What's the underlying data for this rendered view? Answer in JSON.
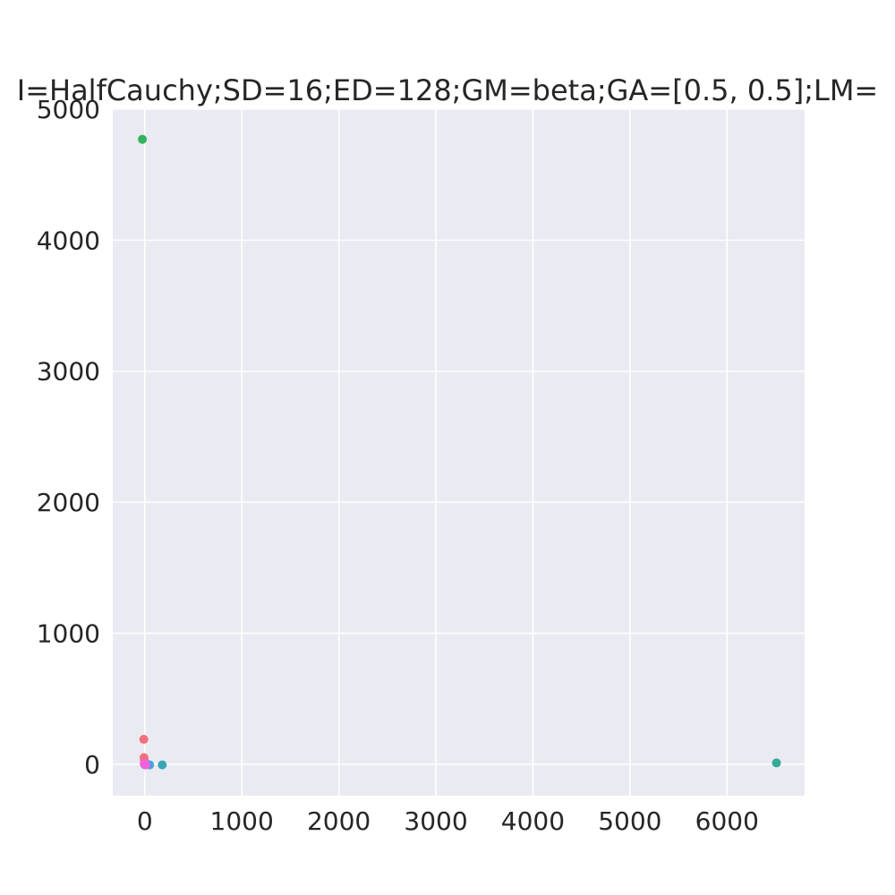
{
  "chart_data": {
    "type": "scatter",
    "title": "I=HalfCauchy;SD=16;ED=128;GM=beta;GA=[0.5, 0.5];LM=",
    "xlabel": "",
    "ylabel": "",
    "xlim": [
      -330,
      6800
    ],
    "ylim": [
      -240,
      5000
    ],
    "x_ticks": [
      0,
      1000,
      2000,
      3000,
      4000,
      5000,
      6000
    ],
    "y_ticks": [
      0,
      1000,
      2000,
      3000,
      4000,
      5000
    ],
    "x_tick_labels": [
      "0",
      "1000",
      "2000",
      "3000",
      "4000",
      "5000",
      "6000"
    ],
    "y_tick_labels": [
      "0",
      "1000",
      "2000",
      "3000",
      "4000",
      "5000"
    ],
    "grid": true,
    "background": "#eaeaf2",
    "series": [
      {
        "color": "#f0707e",
        "points": [
          [
            -10,
            190
          ],
          [
            -8,
            50
          ],
          [
            -5,
            30
          ],
          [
            -3,
            10
          ],
          [
            0,
            0
          ]
        ]
      },
      {
        "color": "#c99b31",
        "points": [
          [
            -5,
            5
          ],
          [
            0,
            0
          ]
        ]
      },
      {
        "color": "#7aad31",
        "points": [
          [
            -3,
            2
          ],
          [
            2,
            0
          ]
        ]
      },
      {
        "color": "#31b35d",
        "points": [
          [
            -25,
            4770
          ],
          [
            0,
            0
          ]
        ]
      },
      {
        "color": "#35ab97",
        "points": [
          [
            6510,
            10
          ],
          [
            0,
            0
          ]
        ]
      },
      {
        "color": "#39a7b3",
        "points": [
          [
            180,
            -5
          ],
          [
            10,
            0
          ]
        ]
      },
      {
        "color": "#4a9fdc",
        "points": [
          [
            50,
            -5
          ],
          [
            20,
            0
          ]
        ]
      },
      {
        "color": "#a68df4",
        "points": [
          [
            5,
            0
          ],
          [
            0,
            -5
          ]
        ]
      },
      {
        "color": "#f161de",
        "points": [
          [
            0,
            0
          ],
          [
            10,
            -5
          ],
          [
            -5,
            5
          ]
        ]
      }
    ]
  }
}
